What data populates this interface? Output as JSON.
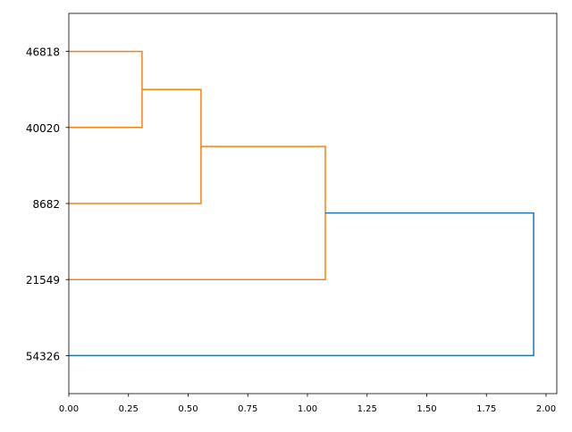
{
  "chart_data": {
    "type": "dendrogram",
    "orientation": "horizontal",
    "leaves": [
      "54326",
      "21549",
      "8682",
      "40020",
      "46818"
    ],
    "merges": [
      {
        "left": "46818",
        "right": "40020",
        "height": 0.307,
        "color": "#ff7f0e"
      },
      {
        "left": "cluster(46818,40020)",
        "right": "8682",
        "height": 0.554,
        "color": "#ff7f0e"
      },
      {
        "left": "cluster(46818,40020,8682)",
        "right": "21549",
        "height": 1.075,
        "color": "#ff7f0e"
      },
      {
        "left": "cluster(46818,40020,8682,21549)",
        "right": "54326",
        "height": 1.948,
        "color": "#1f77b4"
      }
    ],
    "xlim": [
      0,
      2.045
    ],
    "xticks": [
      "0.00",
      "0.25",
      "0.50",
      "0.75",
      "1.00",
      "1.25",
      "1.50",
      "1.75",
      "2.00"
    ],
    "xtick_values": [
      0,
      0.25,
      0.5,
      0.75,
      1.0,
      1.25,
      1.5,
      1.75,
      2.0
    ],
    "grid": false,
    "colors": {
      "cluster": "#ff7f0e",
      "above_threshold": "#1f77b4"
    }
  }
}
